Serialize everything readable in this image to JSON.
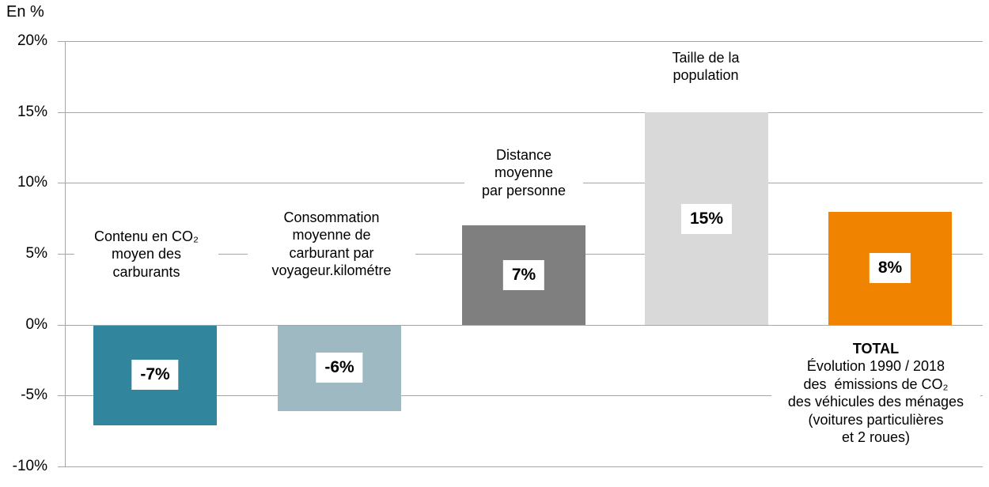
{
  "y_axis_title": "En %",
  "y_ticks": [
    "20%",
    "15%",
    "10%",
    "5%",
    "0%",
    "-5%",
    "-10%"
  ],
  "chart_data": {
    "type": "bar",
    "title": "",
    "y_axis_label": "En %",
    "ylim": [
      -10,
      20
    ],
    "ytick_step": 5,
    "grid": true,
    "legend": "none",
    "categories": [
      "Contenu en CO₂ moyen des carburants",
      "Consommation moyenne de carburant par voyageur.kilométre",
      "Distance moyenne par personne",
      "Taille de la population",
      "TOTAL Évolution 1990 / 2018 des émissions de CO₂ des véhicules des ménages (voitures particulières et 2 roues)"
    ],
    "values": [
      -7,
      -6,
      7,
      15,
      8
    ],
    "value_labels": [
      "-7%",
      "-6%",
      "7%",
      "15%",
      "8%"
    ],
    "colors": [
      "#31859C",
      "#9FB9C2",
      "#7F7F7F",
      "#D9D9D9",
      "#F08300"
    ],
    "gridline_color": "#A6A6A6"
  },
  "bars": [
    {
      "label_lines": "Contenu en CO₂\nmoyen des\ncarburants",
      "value_label": "-7%",
      "value": -7,
      "color": "#31859C"
    },
    {
      "label_lines": "Consommation\nmoyenne de\ncarburant par\nvoyageur.kilométre",
      "value_label": "-6%",
      "value": -6,
      "color": "#9FB9C2"
    },
    {
      "label_lines": "Distance\nmoyenne\npar personne",
      "value_label": "7%",
      "value": 7,
      "color": "#7F7F7F"
    },
    {
      "label_lines": "Taille de la\npopulation",
      "value_label": "15%",
      "value": 15,
      "color": "#D9D9D9"
    },
    {
      "label_title": "TOTAL",
      "label_lines": "Évolution 1990 / 2018\ndes  émissions de CO₂\ndes véhicules des ménages\n(voitures particulières\net 2 roues)",
      "value_label": "8%",
      "value": 8,
      "color": "#F08300"
    }
  ]
}
